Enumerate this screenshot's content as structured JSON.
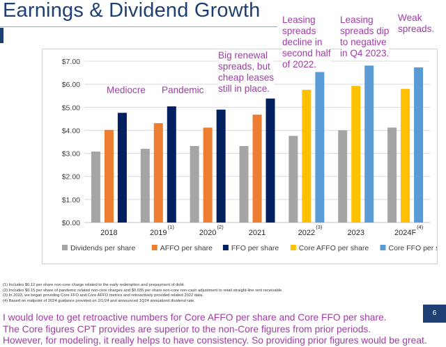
{
  "title": "Earnings & Dividend Growth",
  "annotations": {
    "mediocre": "Mediocre",
    "pandemic": "Pandemic",
    "renewal": "Big renewal\nspreads, but\ncheap leases\nstill in place.",
    "leasing_2022": "Leasing\nspreads\ndecline in\nsecond half\nof 2022.",
    "leasing_2023": "Leasing\nspreads dip\nto negative\nin Q4 2023.",
    "weak": "Weak\nspreads."
  },
  "chart_data": {
    "type": "bar",
    "categories": [
      "2018",
      "2019",
      "2020",
      "2021",
      "2022",
      "2023",
      "2024F"
    ],
    "category_notes": [
      "",
      "(1)",
      "(2)",
      "",
      "(3)",
      "",
      "(4)"
    ],
    "y_ticks": [
      "$0.00",
      "$1.00",
      "$2.00",
      "$3.00",
      "$4.00",
      "$5.00",
      "$6.00",
      "$7.00"
    ],
    "ylim": [
      0,
      7
    ],
    "grid": true,
    "legend_position": "bottom",
    "series": [
      {
        "name": "Dividends per share",
        "color": "#a5a5a5",
        "values": [
          3.08,
          3.2,
          3.32,
          3.32,
          3.76,
          4.0,
          4.12
        ]
      },
      {
        "name": "AFFO per share",
        "color": "#ed7d31",
        "values": [
          4.02,
          4.31,
          4.12,
          4.68,
          null,
          null,
          null
        ]
      },
      {
        "name": "FFO per share",
        "color": "#002060",
        "values": [
          4.76,
          5.04,
          4.9,
          5.38,
          null,
          null,
          null
        ]
      },
      {
        "name": "Core AFFO per share",
        "color": "#ffc000",
        "values": [
          null,
          null,
          null,
          null,
          5.76,
          5.93,
          5.8
        ]
      },
      {
        "name": "Core FFO per share",
        "color": "#5b9bd5",
        "values": [
          null,
          null,
          null,
          null,
          6.53,
          6.81,
          6.73
        ]
      }
    ]
  },
  "footnotes": [
    "(1) Includes $0.12 per share non-core charge related to the early redemption and prepayment of debt.",
    "(2) Includes $0.15 per share of pandemic related non-core charges and $0.035 per share non-core non-cash adjustment to retail straight-line rent receivable.",
    "(3) In 2023, we began providing Core FFO and Core AFFO metrics and retroactively provided related 2022 data.",
    "(4) Based on midpoint of 2024 guidance provided on 2/1/24 and announced 1Q24 annualized dividend rate."
  ],
  "page_number": "6",
  "comment": [
    "I would love to get retroactive numbers for Core AFFO per share and Core FFO per share.",
    "The Core figures CPT provides are superior to the non-Core figures from prior periods.",
    "However, for modeling, it really helps to have consistency. So providing prior figures would be great."
  ]
}
